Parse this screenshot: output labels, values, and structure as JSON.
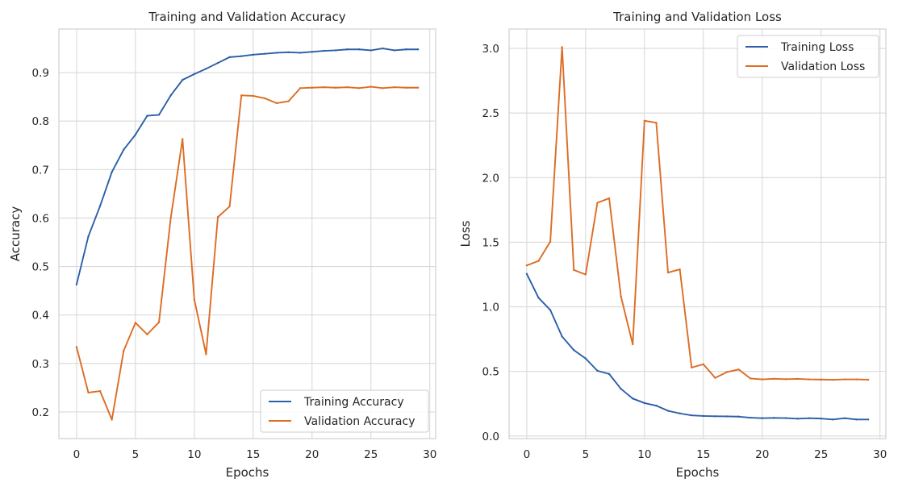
{
  "chart_data": [
    {
      "type": "line",
      "title": "Training and Validation Accuracy",
      "xlabel": "Epochs",
      "ylabel": "Accuracy",
      "xlim": [
        -1.5,
        30.5
      ],
      "ylim": [
        0.145,
        0.99
      ],
      "xticks": [
        0,
        5,
        10,
        15,
        20,
        25,
        30
      ],
      "yticks": [
        0.2,
        0.3,
        0.4,
        0.5,
        0.6,
        0.7,
        0.8,
        0.9
      ],
      "ytick_labels": [
        "0.2",
        "0.3",
        "0.4",
        "0.5",
        "0.6",
        "0.7",
        "0.8",
        "0.9"
      ],
      "grid": true,
      "legend_position": "lower-right",
      "x": [
        0,
        1,
        2,
        3,
        4,
        5,
        6,
        7,
        8,
        9,
        10,
        11,
        12,
        13,
        14,
        15,
        16,
        17,
        18,
        19,
        20,
        21,
        22,
        23,
        24,
        25,
        26,
        27,
        28,
        29
      ],
      "series": [
        {
          "name": "Training Accuracy",
          "color": "#2b5fa8",
          "values": [
            0.463,
            0.562,
            0.625,
            0.695,
            0.741,
            0.772,
            0.811,
            0.813,
            0.853,
            0.885,
            0.897,
            0.908,
            0.92,
            0.932,
            0.934,
            0.937,
            0.939,
            0.941,
            0.942,
            0.941,
            0.943,
            0.945,
            0.946,
            0.948,
            0.948,
            0.946,
            0.95,
            0.946,
            0.948,
            0.948
          ]
        },
        {
          "name": "Validation Accuracy",
          "color": "#dd6c24",
          "values": [
            0.334,
            0.24,
            0.243,
            0.184,
            0.326,
            0.384,
            0.36,
            0.385,
            0.6,
            0.763,
            0.432,
            0.319,
            0.602,
            0.624,
            0.853,
            0.852,
            0.847,
            0.837,
            0.841,
            0.868,
            0.869,
            0.87,
            0.869,
            0.87,
            0.868,
            0.871,
            0.868,
            0.87,
            0.869,
            0.869
          ]
        }
      ]
    },
    {
      "type": "line",
      "title": "Training and Validation Loss",
      "xlabel": "Epochs",
      "ylabel": "Loss",
      "xlim": [
        -1.5,
        30.5
      ],
      "ylim": [
        -0.02,
        3.15
      ],
      "xticks": [
        0,
        5,
        10,
        15,
        20,
        25,
        30
      ],
      "yticks": [
        0.0,
        0.5,
        1.0,
        1.5,
        2.0,
        2.5,
        3.0
      ],
      "ytick_labels": [
        "0.0",
        "0.5",
        "1.0",
        "1.5",
        "2.0",
        "2.5",
        "3.0"
      ],
      "grid": true,
      "legend_position": "upper-right",
      "x": [
        0,
        1,
        2,
        3,
        4,
        5,
        6,
        7,
        8,
        9,
        10,
        11,
        12,
        13,
        14,
        15,
        16,
        17,
        18,
        19,
        20,
        21,
        22,
        23,
        24,
        25,
        26,
        27,
        28,
        29
      ],
      "series": [
        {
          "name": "Training Loss",
          "color": "#2b5fa8",
          "values": [
            1.255,
            1.07,
            0.975,
            0.77,
            0.665,
            0.6,
            0.505,
            0.48,
            0.365,
            0.29,
            0.255,
            0.235,
            0.195,
            0.175,
            0.16,
            0.155,
            0.153,
            0.152,
            0.15,
            0.142,
            0.138,
            0.14,
            0.139,
            0.134,
            0.138,
            0.135,
            0.128,
            0.138,
            0.128,
            0.128
          ]
        },
        {
          "name": "Validation Loss",
          "color": "#dd6c24",
          "values": [
            1.32,
            1.355,
            1.505,
            3.01,
            1.285,
            1.25,
            1.805,
            1.84,
            1.08,
            0.71,
            2.44,
            2.425,
            1.265,
            1.29,
            0.53,
            0.555,
            0.45,
            0.495,
            0.515,
            0.445,
            0.438,
            0.443,
            0.44,
            0.442,
            0.438,
            0.437,
            0.435,
            0.438,
            0.438,
            0.436
          ]
        }
      ]
    }
  ]
}
